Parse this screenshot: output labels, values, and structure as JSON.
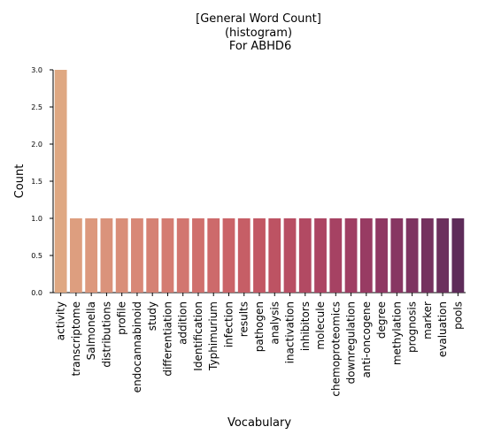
{
  "chart_data": {
    "type": "bar",
    "title_lines": [
      "[General Word Count]",
      "(histogram)",
      " For ABHD6"
    ],
    "xlabel": "Vocabulary",
    "ylabel": "Count",
    "ylim": [
      0,
      3.0
    ],
    "yticks": [
      "0.0",
      "0.5",
      "1.0",
      "1.5",
      "2.0",
      "2.5",
      "3.0"
    ],
    "categories": [
      "activity",
      "transcriptome",
      "Salmonella",
      "distributions",
      "profile",
      "endocannabinoid",
      "study",
      "differentiation",
      "addition",
      "Identification",
      "Typhimurium",
      "infection",
      "results",
      "pathogen",
      "analysis",
      "inactivation",
      "inhibitors",
      "molecule",
      "chemoproteomics",
      "downregulation",
      "anti-oncogene",
      "degree",
      "methylation",
      "prognosis",
      "marker",
      "evaluation",
      "pools"
    ],
    "values": [
      3,
      1,
      1,
      1,
      1,
      1,
      1,
      1,
      1,
      1,
      1,
      1,
      1,
      1,
      1,
      1,
      1,
      1,
      1,
      1,
      1,
      1,
      1,
      1,
      1,
      1,
      1
    ],
    "colors": [
      "#dfa882",
      "#dd9e7f",
      "#dc987d",
      "#da937b",
      "#d98e79",
      "#d88877",
      "#d58274",
      "#d47c72",
      "#d27670",
      "#cf706d",
      "#cd6a6b",
      "#ca6468",
      "#c65e66",
      "#c25864",
      "#bd5363",
      "#b84e63",
      "#b24a63",
      "#ac4563",
      "#a64263",
      "#9f3e63",
      "#983b63",
      "#8f3863",
      "#873662",
      "#7e3461",
      "#75325f",
      "#6c305d",
      "#5e2c59"
    ],
    "grid": false,
    "legend": "none"
  }
}
